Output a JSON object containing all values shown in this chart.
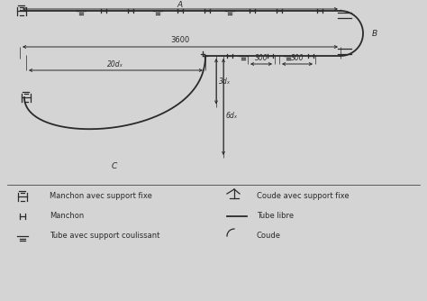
{
  "bg_color": "#d4d4d4",
  "line_color": "#2a2a2a",
  "label_A": "A",
  "label_B": "B",
  "label_C": "C",
  "dim_3600": "3600",
  "dim_20d": "20dₓ",
  "dim_300a": "300",
  "dim_300b": "300",
  "dim_3d": "3dₓ",
  "dim_6d": "6dₓ",
  "legend_items_left": [
    "Manchon avec support fixe",
    "Manchon",
    "Tube avec support coulissant"
  ],
  "legend_items_right": [
    "Coude avec support fixe",
    "Tube libre",
    "Coude"
  ]
}
